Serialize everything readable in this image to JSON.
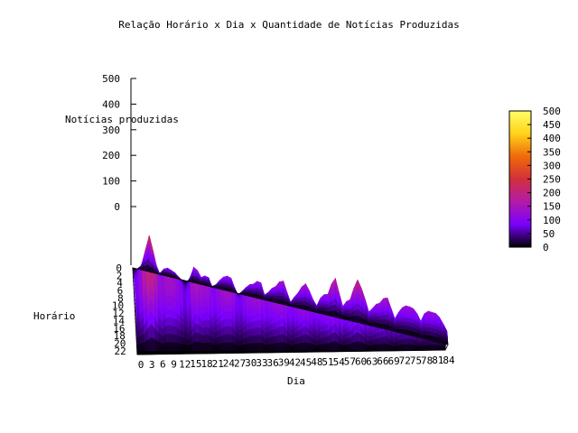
{
  "chart_data": {
    "type": "surface3d",
    "title": "Relação Horário x Dia x Quantidade de Notícias Produzidas",
    "xlabel": "Dia",
    "ylabel": "Horário",
    "zlabel": "Notícias produzidas",
    "x_ticks": [
      0,
      3,
      6,
      9,
      12,
      15,
      18,
      21,
      24,
      27,
      30,
      33,
      36,
      39,
      42,
      45,
      48,
      51,
      54,
      57,
      60,
      63,
      66,
      69,
      72,
      75,
      78,
      81,
      84
    ],
    "y_ticks": [
      0,
      2,
      4,
      6,
      8,
      10,
      12,
      14,
      16,
      18,
      20,
      22
    ],
    "z_ticks": [
      0,
      100,
      200,
      300,
      400,
      500
    ],
    "xlim": [
      0,
      84
    ],
    "ylim": [
      0,
      23
    ],
    "zlim": [
      0,
      500
    ],
    "colorbar": {
      "ticks": [
        0,
        50,
        100,
        150,
        200,
        250,
        300,
        350,
        400,
        450,
        500
      ],
      "range": [
        0,
        500
      ],
      "palette": [
        "#000000",
        "#7a00ff",
        "#b41aa8",
        "#d2303a",
        "#f06a0a",
        "#ffd21a",
        "#ffff66"
      ]
    },
    "grid": true,
    "peaks_by_day": {
      "day": [
        0,
        2,
        4,
        6,
        8,
        10,
        12,
        14,
        16,
        18,
        20,
        22,
        24,
        26,
        28,
        30,
        32,
        34,
        36,
        38,
        40,
        42,
        44,
        46,
        48,
        50,
        52,
        54,
        56,
        58,
        60,
        62,
        64,
        66,
        68,
        70,
        72,
        74,
        76,
        78,
        80,
        82,
        84
      ],
      "max_news": [
        130,
        150,
        280,
        200,
        185,
        140,
        120,
        115,
        190,
        130,
        180,
        140,
        150,
        165,
        120,
        130,
        140,
        200,
        150,
        145,
        190,
        150,
        145,
        175,
        150,
        165,
        145,
        235,
        185,
        150,
        220,
        195,
        150,
        140,
        180,
        150,
        145,
        140,
        155,
        160,
        130,
        125,
        115
      ]
    }
  }
}
